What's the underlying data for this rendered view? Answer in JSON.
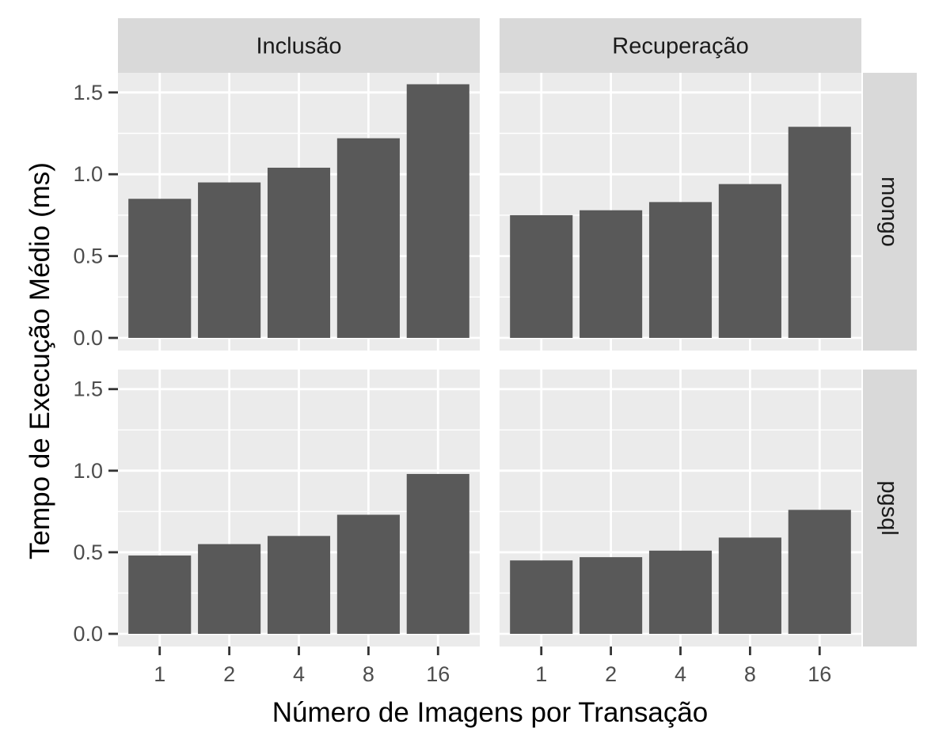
{
  "chart_data": {
    "type": "bar",
    "layout": "facet_grid",
    "xlabel": "Número de Imagens por Transação",
    "ylabel": "Tempo de Execução Médio (ms)",
    "categories": [
      "1",
      "2",
      "4",
      "8",
      "16"
    ],
    "columns": [
      "Inclusão",
      "Recuperação"
    ],
    "rows": [
      "mongo",
      "pgsql"
    ],
    "yticks": [
      "0.0",
      "0.5",
      "1.0",
      "1.5"
    ],
    "ylim": [
      0,
      1.62
    ],
    "grid": true,
    "legend": "none",
    "colors": {
      "bar": "#595959",
      "panel": "#ebebeb",
      "strip": "#d9d9d9",
      "grid": "#ffffff"
    },
    "panels": [
      {
        "column": "Inclusão",
        "row": "mongo",
        "values": [
          0.85,
          0.95,
          1.04,
          1.22,
          1.55
        ]
      },
      {
        "column": "Recuperação",
        "row": "mongo",
        "values": [
          0.75,
          0.78,
          0.83,
          0.94,
          1.29
        ]
      },
      {
        "column": "Inclusão",
        "row": "pgsql",
        "values": [
          0.48,
          0.55,
          0.6,
          0.73,
          0.98
        ]
      },
      {
        "column": "Recuperação",
        "row": "pgsql",
        "values": [
          0.45,
          0.47,
          0.51,
          0.59,
          0.76
        ]
      }
    ]
  }
}
